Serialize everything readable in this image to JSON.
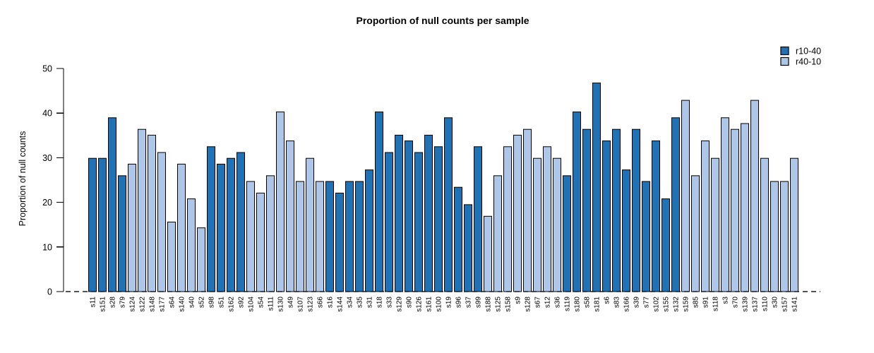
{
  "chart_data": {
    "type": "bar",
    "title": "Proportion of null counts per sample",
    "xlabel": "",
    "ylabel": "Proportion of null counts",
    "ylim": [
      0,
      50
    ],
    "yticks": [
      0,
      10,
      20,
      30,
      40,
      50
    ],
    "grid": false,
    "zero_line": "dashed-black",
    "legend_position": "top-right",
    "legend": [
      {
        "label": "r10-40",
        "color": "#2171B5"
      },
      {
        "label": "r40-10",
        "color": "#AEC7E8"
      }
    ],
    "bar_border_color": "#000000",
    "categories": [
      "s11",
      "s151",
      "s28",
      "s79",
      "s124",
      "s122",
      "s148",
      "s177",
      "s64",
      "s140",
      "s40",
      "s52",
      "s98",
      "s51",
      "s162",
      "s92",
      "s104",
      "s54",
      "s111",
      "s130",
      "s49",
      "s107",
      "s123",
      "s66",
      "s16",
      "s144",
      "s34",
      "s35",
      "s31",
      "s18",
      "s33",
      "s129",
      "s90",
      "s126",
      "s161",
      "s100",
      "s19",
      "s96",
      "s37",
      "s99",
      "s188",
      "s125",
      "s158",
      "s9",
      "s128",
      "s67",
      "s12",
      "s36",
      "s119",
      "s180",
      "s58",
      "s181",
      "s6",
      "s83",
      "s166",
      "s39",
      "s77",
      "s102",
      "s155",
      "s132",
      "s159",
      "s85",
      "s91",
      "s118",
      "s3",
      "s70",
      "s139",
      "s137",
      "s110",
      "s30",
      "s157",
      "s141"
    ],
    "values": [
      29.87,
      29.87,
      38.96,
      25.97,
      28.57,
      36.36,
      35.06,
      31.17,
      15.58,
      28.57,
      20.78,
      14.29,
      32.47,
      28.57,
      29.87,
      31.17,
      24.68,
      22.08,
      25.97,
      40.26,
      33.77,
      24.68,
      29.87,
      24.68,
      24.68,
      22.08,
      24.68,
      24.68,
      27.27,
      40.26,
      31.17,
      35.06,
      33.77,
      31.17,
      35.06,
      32.47,
      38.96,
      23.38,
      19.48,
      32.47,
      16.88,
      25.97,
      32.47,
      35.06,
      36.36,
      29.87,
      32.47,
      29.87,
      25.97,
      40.26,
      36.36,
      46.75,
      33.77,
      36.36,
      27.27,
      36.36,
      24.68,
      33.77,
      20.78,
      38.96,
      42.86,
      25.97,
      33.77,
      29.87,
      38.96,
      36.36,
      37.66,
      42.86,
      29.87,
      24.68,
      24.68,
      29.87
    ],
    "series_of_bar": [
      "r10-40",
      "r10-40",
      "r10-40",
      "r10-40",
      "r40-10",
      "r40-10",
      "r40-10",
      "r40-10",
      "r40-10",
      "r40-10",
      "r40-10",
      "r40-10",
      "r10-40",
      "r10-40",
      "r10-40",
      "r10-40",
      "r40-10",
      "r40-10",
      "r40-10",
      "r40-10",
      "r40-10",
      "r40-10",
      "r40-10",
      "r40-10",
      "r10-40",
      "r10-40",
      "r10-40",
      "r10-40",
      "r10-40",
      "r10-40",
      "r10-40",
      "r10-40",
      "r10-40",
      "r10-40",
      "r10-40",
      "r10-40",
      "r10-40",
      "r10-40",
      "r10-40",
      "r10-40",
      "r40-10",
      "r40-10",
      "r40-10",
      "r40-10",
      "r40-10",
      "r40-10",
      "r40-10",
      "r40-10",
      "r10-40",
      "r10-40",
      "r10-40",
      "r10-40",
      "r10-40",
      "r10-40",
      "r10-40",
      "r10-40",
      "r10-40",
      "r10-40",
      "r10-40",
      "r10-40",
      "r40-10",
      "r40-10",
      "r40-10",
      "r40-10",
      "r40-10",
      "r40-10",
      "r40-10",
      "r40-10",
      "r40-10",
      "r40-10",
      "r40-10",
      "r40-10"
    ]
  }
}
